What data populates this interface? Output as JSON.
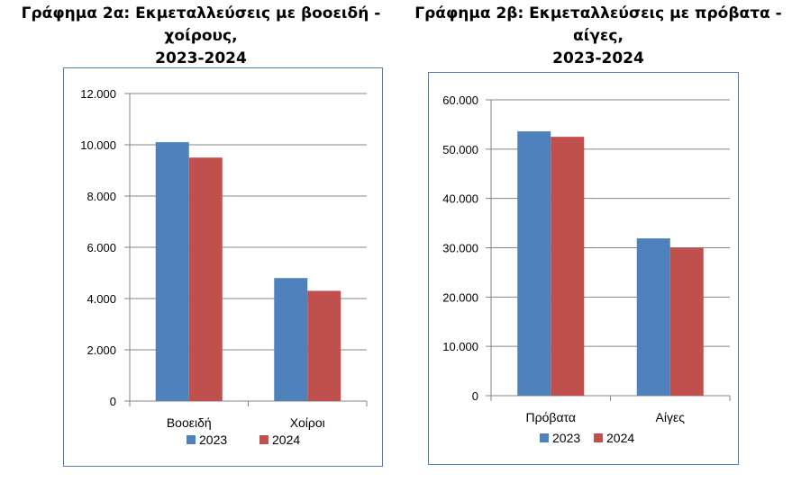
{
  "charts": {
    "a": {
      "title_line1": "Γράφημα 2α: Εκμεταλλεύσεις με βοοειδή - χοίρους,",
      "title_line2": "2023-2024"
    },
    "b": {
      "title_line1": "Γράφημα 2β: Εκμεταλλεύσεις με πρόβατα - αίγες,",
      "title_line2": "2023-2024"
    }
  },
  "colors": {
    "s2023": "#4f81bd",
    "s2024": "#c0504d",
    "grid": "#868686",
    "frame": "#4a7ebb"
  },
  "chart_data": [
    {
      "type": "bar",
      "title": "Γράφημα 2α: Εκμεταλλεύσεις με βοοειδή - χοίρους, 2023-2024",
      "categories": [
        "Βοοειδή",
        "Χοίροι"
      ],
      "series": [
        {
          "name": "2023",
          "values": [
            10100,
            4800
          ]
        },
        {
          "name": "2024",
          "values": [
            9500,
            4300
          ]
        }
      ],
      "ylim": [
        0,
        12000
      ],
      "yticks": [
        0,
        2000,
        4000,
        6000,
        8000,
        10000,
        12000
      ],
      "ytick_labels": [
        "0",
        "2.000",
        "4.000",
        "6.000",
        "8.000",
        "10.000",
        "12.000"
      ],
      "legend": "bottom",
      "grid": true
    },
    {
      "type": "bar",
      "title": "Γράφημα 2β: Εκμεταλλεύσεις με πρόβατα - αίγες, 2023-2024",
      "categories": [
        "Πρόβατα",
        "Αίγες"
      ],
      "series": [
        {
          "name": "2023",
          "values": [
            53600,
            31900
          ]
        },
        {
          "name": "2024",
          "values": [
            52500,
            30000
          ]
        }
      ],
      "ylim": [
        0,
        60000
      ],
      "yticks": [
        0,
        10000,
        20000,
        30000,
        40000,
        50000,
        60000
      ],
      "ytick_labels": [
        "0",
        "10.000",
        "20.000",
        "30.000",
        "40.000",
        "50.000",
        "60.000"
      ],
      "legend": "bottom",
      "grid": true
    }
  ]
}
